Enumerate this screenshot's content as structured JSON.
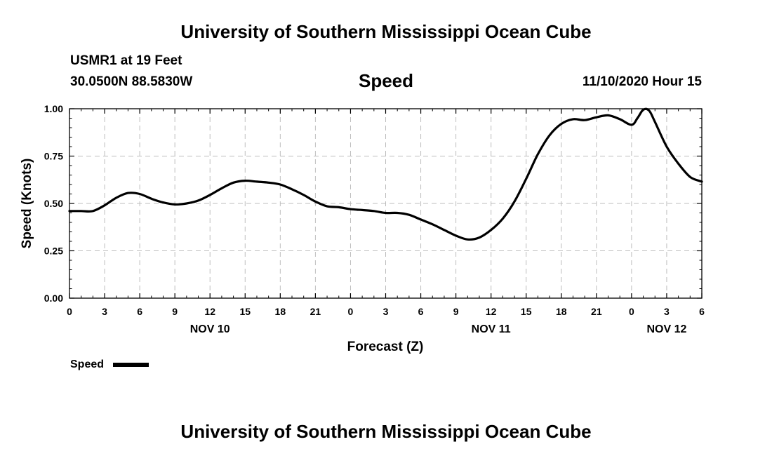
{
  "header": {
    "top_title": "University of Southern Mississippi Ocean Cube",
    "station": "USMR1 at 19 Feet",
    "location": "30.0500N 88.5830W",
    "chart_title": "Speed",
    "timestamp": "11/10/2020 Hour 15",
    "bottom_title": "University of Southern Mississippi Ocean Cube"
  },
  "chart_data": {
    "type": "line",
    "title": "Speed",
    "xlabel": "Forecast (Z)",
    "ylabel": "Speed (Knots)",
    "ylim": [
      0,
      1.0
    ],
    "xlim": [
      0,
      54
    ],
    "yticks": [
      {
        "value": 0.0,
        "label": "0.00"
      },
      {
        "value": 0.25,
        "label": "0.25"
      },
      {
        "value": 0.5,
        "label": "0.50"
      },
      {
        "value": 0.75,
        "label": "0.75"
      },
      {
        "value": 1.0,
        "label": "1.00"
      }
    ],
    "xticks": [
      {
        "value": 0,
        "label": "0"
      },
      {
        "value": 3,
        "label": "3"
      },
      {
        "value": 6,
        "label": "6"
      },
      {
        "value": 9,
        "label": "9"
      },
      {
        "value": 12,
        "label": "12"
      },
      {
        "value": 15,
        "label": "15"
      },
      {
        "value": 18,
        "label": "18"
      },
      {
        "value": 21,
        "label": "21"
      },
      {
        "value": 24,
        "label": "0"
      },
      {
        "value": 27,
        "label": "3"
      },
      {
        "value": 30,
        "label": "6"
      },
      {
        "value": 33,
        "label": "9"
      },
      {
        "value": 36,
        "label": "12"
      },
      {
        "value": 39,
        "label": "15"
      },
      {
        "value": 42,
        "label": "18"
      },
      {
        "value": 45,
        "label": "21"
      },
      {
        "value": 48,
        "label": "0"
      },
      {
        "value": 51,
        "label": "3"
      },
      {
        "value": 54,
        "label": "6"
      }
    ],
    "day_labels": [
      {
        "value": 12,
        "label": "NOV 10"
      },
      {
        "value": 36,
        "label": "NOV 11"
      },
      {
        "value": 51,
        "label": "NOV 12"
      }
    ],
    "grid": true,
    "legend": {
      "position": "bottom-left",
      "entries": [
        "Speed"
      ]
    },
    "series": [
      {
        "name": "Speed",
        "color": "#000000",
        "x": [
          0,
          1,
          2,
          3,
          4,
          5,
          6,
          7,
          8,
          9,
          10,
          11,
          12,
          13,
          14,
          15,
          16,
          17,
          18,
          19,
          20,
          21,
          22,
          23,
          24,
          25,
          26,
          27,
          28,
          29,
          30,
          31,
          32,
          33,
          34,
          35,
          36,
          37,
          38,
          39,
          40,
          41,
          42,
          43,
          44,
          45,
          46,
          47,
          48,
          48.5,
          49,
          49.5,
          50,
          51,
          52,
          53,
          54
        ],
        "values": [
          0.46,
          0.46,
          0.46,
          0.49,
          0.53,
          0.555,
          0.55,
          0.525,
          0.505,
          0.495,
          0.5,
          0.515,
          0.545,
          0.58,
          0.61,
          0.62,
          0.615,
          0.61,
          0.6,
          0.575,
          0.545,
          0.51,
          0.485,
          0.48,
          0.47,
          0.465,
          0.46,
          0.45,
          0.45,
          0.44,
          0.415,
          0.39,
          0.36,
          0.33,
          0.31,
          0.32,
          0.36,
          0.42,
          0.51,
          0.63,
          0.76,
          0.86,
          0.92,
          0.945,
          0.94,
          0.955,
          0.965,
          0.945,
          0.915,
          0.95,
          0.995,
          0.99,
          0.93,
          0.8,
          0.71,
          0.64,
          0.615
        ]
      }
    ]
  }
}
